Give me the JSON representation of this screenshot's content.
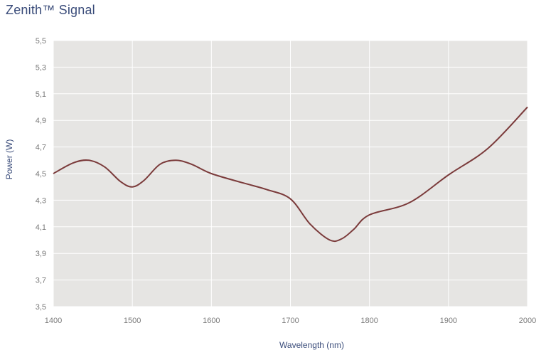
{
  "chart_data": {
    "type": "line",
    "title": "Zenith™ Signal",
    "xlabel": "Wavelength (nm)",
    "ylabel": "Power (W)",
    "xlim": [
      1400,
      2000
    ],
    "ylim": [
      3.5,
      5.5
    ],
    "x_ticks": [
      1400,
      1500,
      1600,
      1700,
      1800,
      1900,
      2000
    ],
    "y_ticks": [
      "3,5",
      "3,7",
      "3,9",
      "4,1",
      "4,3",
      "4,5",
      "4,7",
      "4,9",
      "5,1",
      "5,3",
      "5,5"
    ],
    "y_tick_values": [
      3.5,
      3.7,
      3.9,
      4.1,
      4.3,
      4.5,
      4.7,
      4.9,
      5.1,
      5.3,
      5.5
    ],
    "grid": true,
    "colors": {
      "plot_bg": "#e6e5e3",
      "grid": "#ffffff",
      "line": "#7b3b3b",
      "title": "#3a4c7a"
    },
    "series": [
      {
        "x": [
          1400,
          1425,
          1445,
          1465,
          1485,
          1500,
          1515,
          1535,
          1555,
          1575,
          1600,
          1640,
          1670,
          1700,
          1725,
          1750,
          1765,
          1780,
          1800,
          1850,
          1900,
          1950,
          2000
        ],
        "y": [
          4.5,
          4.58,
          4.6,
          4.55,
          4.44,
          4.4,
          4.45,
          4.57,
          4.6,
          4.57,
          4.5,
          4.43,
          4.38,
          4.31,
          4.12,
          4.0,
          4.01,
          4.08,
          4.19,
          4.28,
          4.49,
          4.69,
          5.0
        ]
      }
    ]
  }
}
